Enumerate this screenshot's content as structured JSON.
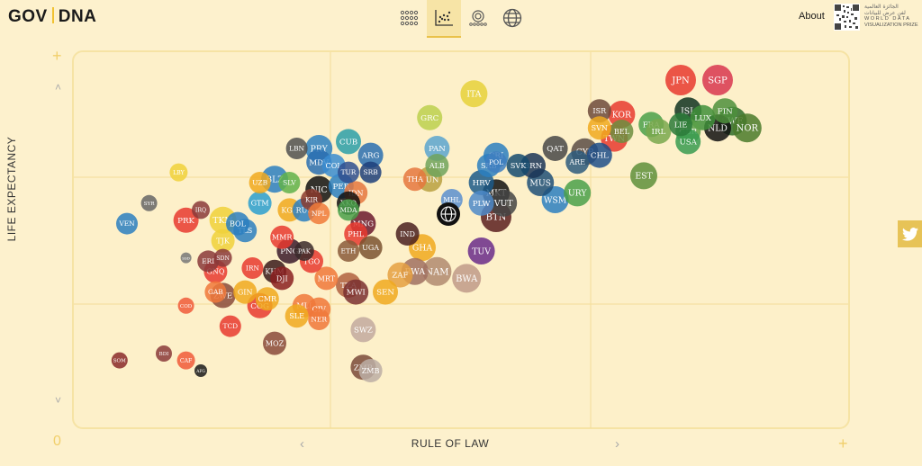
{
  "header": {
    "logo_left": "GOV",
    "logo_right": "DNA",
    "about": "About",
    "prize_arabic_1": "الجائزة العالمية",
    "prize_arabic_2": "لفن عرض للبيانات",
    "prize_line_1": "WORLD DATA",
    "prize_line_2": "VISUALIZATION PRIZE",
    "nav_icons": [
      "dot-matrix-icon",
      "scatter-plot-icon",
      "radial-icon",
      "globe-icon"
    ],
    "accent": "#e9c14a"
  },
  "axes": {
    "xlabel": "RULE OF LAW",
    "ylabel": "LIFE EXPECTANCY",
    "origin_label": "0",
    "corner_plus": "+",
    "up_arrow": "˄",
    "down_arrow": "˅",
    "left_arrow": "‹",
    "right_arrow": "›"
  },
  "chart_data": {
    "type": "scatter",
    "xlabel": "RULE OF LAW",
    "ylabel": "LIFE EXPECTANCY",
    "xlim": [
      0,
      100
    ],
    "ylim": [
      0,
      100
    ],
    "grid": true,
    "points": [
      {
        "label": "JPN",
        "x": 80,
        "y": 95,
        "r": 17,
        "color": "#e8392f"
      },
      {
        "label": "SGP",
        "x": 85,
        "y": 95,
        "r": 17,
        "color": "#d8364f"
      },
      {
        "label": "ISL",
        "x": 81,
        "y": 86,
        "r": 15,
        "color": "#0f3320"
      },
      {
        "label": "SWE",
        "x": 87,
        "y": 83,
        "r": 16,
        "color": "#2f6d2a"
      },
      {
        "label": "NLD",
        "x": 85,
        "y": 81,
        "r": 15,
        "color": "#111111"
      },
      {
        "label": "LUX",
        "x": 83,
        "y": 84,
        "r": 14,
        "color": "#3f8f3a"
      },
      {
        "label": "GBR",
        "x": 81,
        "y": 80,
        "r": 14,
        "color": "#5ba049"
      },
      {
        "label": "USA",
        "x": 81,
        "y": 77,
        "r": 14,
        "color": "#389b50"
      },
      {
        "label": "LIE",
        "x": 80,
        "y": 82,
        "r": 13,
        "color": "#2c7a3a"
      },
      {
        "label": "FIN",
        "x": 86,
        "y": 86,
        "r": 14,
        "color": "#4d8f3c"
      },
      {
        "label": "NOR",
        "x": 89,
        "y": 81,
        "r": 16,
        "color": "#4a7a2a"
      },
      {
        "label": "FRA",
        "x": 76,
        "y": 82,
        "r": 14,
        "color": "#4aa04a"
      },
      {
        "label": "IRL",
        "x": 77,
        "y": 80,
        "r": 14,
        "color": "#79a84e"
      },
      {
        "label": "BEL",
        "x": 72,
        "y": 80,
        "r": 13,
        "color": "#6d8e3f"
      },
      {
        "label": "KOR",
        "x": 72,
        "y": 85,
        "r": 15,
        "color": "#e8392f"
      },
      {
        "label": "ISR",
        "x": 69,
        "y": 86,
        "r": 13,
        "color": "#6d4a3b"
      },
      {
        "label": "SVN",
        "x": 69,
        "y": 81,
        "r": 13,
        "color": "#f0a91f"
      },
      {
        "label": "TWN",
        "x": 71,
        "y": 78,
        "r": 15,
        "color": "#e8392f"
      },
      {
        "label": "CHL",
        "x": 69,
        "y": 73,
        "r": 14,
        "color": "#1e4f8a"
      },
      {
        "label": "EST",
        "x": 75,
        "y": 67,
        "r": 15,
        "color": "#5e8f3b"
      },
      {
        "label": "CYP",
        "x": 67,
        "y": 74,
        "r": 15,
        "color": "#5b4c45"
      },
      {
        "label": "QAT",
        "x": 63,
        "y": 75,
        "r": 14,
        "color": "#464646"
      },
      {
        "label": "ARE",
        "x": 66,
        "y": 71,
        "r": 13,
        "color": "#2d5b7c"
      },
      {
        "label": "WSM",
        "x": 63,
        "y": 60,
        "r": 15,
        "color": "#2c7fbf"
      },
      {
        "label": "URY",
        "x": 66,
        "y": 62,
        "r": 15,
        "color": "#4aa04a"
      },
      {
        "label": "MUS",
        "x": 61,
        "y": 65,
        "r": 15,
        "color": "#1f4f77"
      },
      {
        "label": "SRB",
        "x": 54,
        "y": 70,
        "r": 13,
        "color": "#2c7fbf"
      },
      {
        "label": "BRN",
        "x": 60,
        "y": 70,
        "r": 14,
        "color": "#1b3557"
      },
      {
        "label": "SVK",
        "x": 58,
        "y": 70,
        "r": 13,
        "color": "#144a6e"
      },
      {
        "label": "CRI",
        "x": 55,
        "y": 73,
        "r": 14,
        "color": "#2c7fbf"
      },
      {
        "label": "POL",
        "x": 55,
        "y": 71,
        "r": 12,
        "color": "#3f7fbf"
      },
      {
        "label": "HRV",
        "x": 53,
        "y": 65,
        "r": 14,
        "color": "#1c5a8a"
      },
      {
        "label": "MKT",
        "x": 55,
        "y": 62,
        "r": 15,
        "color": "#111111"
      },
      {
        "label": "VUT",
        "x": 56,
        "y": 59,
        "r": 15,
        "color": "#444444"
      },
      {
        "label": "ITA",
        "x": 52,
        "y": 91,
        "r": 15,
        "color": "#e6d13a"
      },
      {
        "label": "GRC",
        "x": 46,
        "y": 84,
        "r": 14,
        "color": "#bcd04d"
      },
      {
        "label": "PAN",
        "x": 47,
        "y": 75,
        "r": 14,
        "color": "#5ba4cf"
      },
      {
        "label": "TUN",
        "x": 46,
        "y": 66,
        "r": 14,
        "color": "#b9a040"
      },
      {
        "label": "THA",
        "x": 44,
        "y": 66,
        "r": 13,
        "color": "#e5773e"
      },
      {
        "label": "ALB",
        "x": 47,
        "y": 70,
        "r": 13,
        "color": "#70a35c"
      },
      {
        "label": "MHL",
        "x": 49,
        "y": 60,
        "r": 12,
        "color": "#5b8fcf"
      },
      {
        "label": "PLW",
        "x": 53,
        "y": 59,
        "r": 14,
        "color": "#4d89c9"
      },
      {
        "label": "CUB",
        "x": 35,
        "y": 77,
        "r": 14,
        "color": "#2c9fa8"
      },
      {
        "label": "ARG",
        "x": 38,
        "y": 73,
        "r": 14,
        "color": "#2a6fb0"
      },
      {
        "label": "COL",
        "x": 33,
        "y": 70,
        "r": 13,
        "color": "#3a8cd0"
      },
      {
        "label": "TUR",
        "x": 35,
        "y": 68,
        "r": 12,
        "color": "#2f4f8f"
      },
      {
        "label": "SRB2",
        "x": 38,
        "y": 68,
        "r": 12,
        "color": "#1d3f7a"
      },
      {
        "label": "LBN",
        "x": 28,
        "y": 75,
        "r": 12,
        "color": "#505050"
      },
      {
        "label": "PRY",
        "x": 31,
        "y": 75,
        "r": 15,
        "color": "#2c7fbf"
      },
      {
        "label": "MDV",
        "x": 31,
        "y": 71,
        "r": 14,
        "color": "#2a6fb0"
      },
      {
        "label": "BLZ",
        "x": 25,
        "y": 66,
        "r": 15,
        "color": "#2c7fbf"
      },
      {
        "label": "UZB",
        "x": 23,
        "y": 65,
        "r": 12,
        "color": "#f0a91f"
      },
      {
        "label": "SLV",
        "x": 27,
        "y": 65,
        "r": 12,
        "color": "#60b24a"
      },
      {
        "label": "NIC",
        "x": 31,
        "y": 63,
        "r": 15,
        "color": "#111111"
      },
      {
        "label": "PER",
        "x": 34,
        "y": 64,
        "r": 14,
        "color": "#2c7fbf"
      },
      {
        "label": "IDN",
        "x": 36,
        "y": 62,
        "r": 13,
        "color": "#e5773e"
      },
      {
        "label": "KIR",
        "x": 30,
        "y": 60,
        "r": 12,
        "color": "#8b3b2e"
      },
      {
        "label": "GTM",
        "x": 23,
        "y": 59,
        "r": 13,
        "color": "#2c9fcf"
      },
      {
        "label": "KGZ",
        "x": 27,
        "y": 57,
        "r": 13,
        "color": "#f0a91f"
      },
      {
        "label": "RUS",
        "x": 29,
        "y": 57,
        "r": 13,
        "color": "#2c7fbf"
      },
      {
        "label": "NPL",
        "x": 31,
        "y": 56,
        "r": 12,
        "color": "#f07a3a"
      },
      {
        "label": "XKO",
        "x": 35,
        "y": 59,
        "r": 13,
        "color": "#111111"
      },
      {
        "label": "MDA",
        "x": 35,
        "y": 57,
        "r": 12,
        "color": "#4aa04a"
      },
      {
        "label": "MNG",
        "x": 37,
        "y": 53,
        "r": 14,
        "color": "#6b1a2e"
      },
      {
        "label": "PHL",
        "x": 36,
        "y": 50,
        "r": 13,
        "color": "#e8392f"
      },
      {
        "label": "UGA",
        "x": 38,
        "y": 46,
        "r": 13,
        "color": "#7a5230"
      },
      {
        "label": "ETH",
        "x": 35,
        "y": 45,
        "r": 12,
        "color": "#8a5a3a"
      },
      {
        "label": "IND",
        "x": 43,
        "y": 50,
        "r": 13,
        "color": "#4a2020"
      },
      {
        "label": "GHA",
        "x": 45,
        "y": 46,
        "r": 15,
        "color": "#f0a91f"
      },
      {
        "label": "ZAF",
        "x": 42,
        "y": 38,
        "r": 14,
        "color": "#e5a041"
      },
      {
        "label": "RWA",
        "x": 44,
        "y": 39,
        "r": 15,
        "color": "#a07060"
      },
      {
        "label": "NAM",
        "x": 47,
        "y": 39,
        "r": 16,
        "color": "#b08a70"
      },
      {
        "label": "BWA",
        "x": 51,
        "y": 37,
        "r": 16,
        "color": "#c09a88"
      },
      {
        "label": "TUV",
        "x": 53,
        "y": 45,
        "r": 15,
        "color": "#6a2b8a"
      },
      {
        "label": "BTN",
        "x": 55,
        "y": 55,
        "r": 17,
        "color": "#5b1f1f"
      },
      {
        "label": "SEN",
        "x": 40,
        "y": 33,
        "r": 14,
        "color": "#f0a91f"
      },
      {
        "label": "TZA",
        "x": 35,
        "y": 35,
        "r": 14,
        "color": "#b06040"
      },
      {
        "label": "MWI",
        "x": 36,
        "y": 33,
        "r": 14,
        "color": "#7a3030"
      },
      {
        "label": "SWZ",
        "x": 37,
        "y": 22,
        "r": 14,
        "color": "#c2a99f"
      },
      {
        "label": "ZMB",
        "x": 37,
        "y": 11,
        "r": 14,
        "color": "#7a4a3a"
      },
      {
        "label": "ZMB2",
        "x": 38,
        "y": 10,
        "r": 13,
        "color": "#bcaea5"
      },
      {
        "label": "MRT",
        "x": 32,
        "y": 37,
        "r": 13,
        "color": "#f0783a"
      },
      {
        "label": "TGO",
        "x": 30,
        "y": 42,
        "r": 13,
        "color": "#e8392f"
      },
      {
        "label": "PAK",
        "x": 29,
        "y": 45,
        "r": 11,
        "color": "#3a2a2a"
      },
      {
        "label": "PNG",
        "x": 27,
        "y": 45,
        "r": 14,
        "color": "#3a1a2a"
      },
      {
        "label": "MMR",
        "x": 26,
        "y": 49,
        "r": 13,
        "color": "#e8392f"
      },
      {
        "label": "KHM",
        "x": 25,
        "y": 39,
        "r": 13,
        "color": "#3a1a1a"
      },
      {
        "label": "DJI",
        "x": 26,
        "y": 37,
        "r": 13,
        "color": "#8a2020"
      },
      {
        "label": "IRN",
        "x": 22,
        "y": 40,
        "r": 12,
        "color": "#e8392f"
      },
      {
        "label": "COG",
        "x": 23,
        "y": 29,
        "r": 14,
        "color": "#e8392f"
      },
      {
        "label": "CMR",
        "x": 24,
        "y": 31,
        "r": 13,
        "color": "#f0a91f"
      },
      {
        "label": "MLI",
        "x": 29,
        "y": 29,
        "r": 13,
        "color": "#f0783a"
      },
      {
        "label": "CIV",
        "x": 31,
        "y": 28,
        "r": 13,
        "color": "#f0783a"
      },
      {
        "label": "SLE",
        "x": 28,
        "y": 26,
        "r": 13,
        "color": "#f0a91f"
      },
      {
        "label": "NER",
        "x": 31,
        "y": 25,
        "r": 12,
        "color": "#f0783a"
      },
      {
        "label": "GIN",
        "x": 21,
        "y": 33,
        "r": 13,
        "color": "#f0a91f"
      },
      {
        "label": "TLS",
        "x": 21,
        "y": 51,
        "r": 13,
        "color": "#2c7fbf"
      },
      {
        "label": "BOL",
        "x": 20,
        "y": 53,
        "r": 13,
        "color": "#2c7fbf"
      },
      {
        "label": "TJK",
        "x": 18,
        "y": 48,
        "r": 13,
        "color": "#f0d13a"
      },
      {
        "label": "TKM",
        "x": 18,
        "y": 54,
        "r": 15,
        "color": "#f0d13a"
      },
      {
        "label": "PRK",
        "x": 13,
        "y": 54,
        "r": 14,
        "color": "#e8392f"
      },
      {
        "label": "IRQ",
        "x": 15,
        "y": 57,
        "r": 10,
        "color": "#8a3a3a"
      },
      {
        "label": "LBY",
        "x": 12,
        "y": 68,
        "r": 10,
        "color": "#f0d13a"
      },
      {
        "label": "SYR",
        "x": 8,
        "y": 59,
        "r": 9,
        "color": "#666666"
      },
      {
        "label": "VEN",
        "x": 5,
        "y": 53,
        "r": 12,
        "color": "#2c7fbf"
      },
      {
        "label": "ERI",
        "x": 16,
        "y": 42,
        "r": 12,
        "color": "#8a3a3a"
      },
      {
        "label": "SDN",
        "x": 18,
        "y": 43,
        "r": 10,
        "color": "#8a3a3a"
      },
      {
        "label": "GNQ",
        "x": 17,
        "y": 39,
        "r": 13,
        "color": "#e8392f"
      },
      {
        "label": "GAB",
        "x": 17,
        "y": 33,
        "r": 12,
        "color": "#f0783a"
      },
      {
        "label": "ZWE",
        "x": 18,
        "y": 32,
        "r": 14,
        "color": "#8a4a3a"
      },
      {
        "label": "COD",
        "x": 13,
        "y": 29,
        "r": 9,
        "color": "#f05a3a"
      },
      {
        "label": "TCD",
        "x": 19,
        "y": 23,
        "r": 12,
        "color": "#e8392f"
      },
      {
        "label": "MOZ",
        "x": 25,
        "y": 18,
        "r": 13,
        "color": "#8a4a3a"
      },
      {
        "label": "BDI",
        "x": 10,
        "y": 15,
        "r": 9,
        "color": "#8a3a3a"
      },
      {
        "label": "CAF",
        "x": 13,
        "y": 13,
        "r": 10,
        "color": "#f05a3a"
      },
      {
        "label": "SOM",
        "x": 4,
        "y": 13,
        "r": 9,
        "color": "#8a2a2a"
      },
      {
        "label": "AFG",
        "x": 15,
        "y": 10,
        "r": 7,
        "color": "#1a1a1a"
      },
      {
        "label": "SSD",
        "x": 13,
        "y": 43,
        "r": 6,
        "color": "#777777"
      }
    ]
  }
}
